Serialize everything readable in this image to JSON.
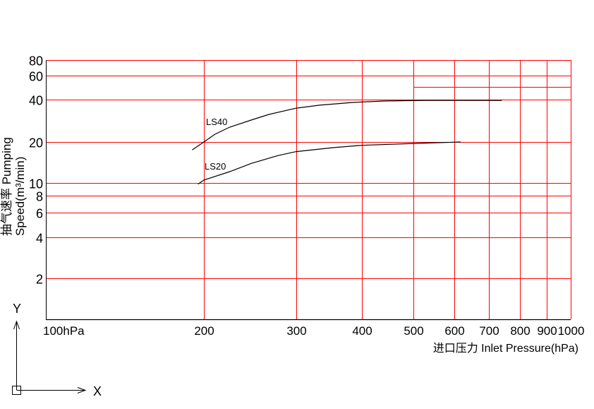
{
  "chart_data": {
    "type": "line",
    "title": "",
    "xlabel": "进口压力 Inlet Pressure(hPa)",
    "ylabel_line1": "抽气速率 Pumping",
    "ylabel_line2": "Speed(m³/min)",
    "x_scale": "log",
    "y_scale": "log",
    "xlim": [
      100,
      1000
    ],
    "ylim": [
      1,
      80
    ],
    "grid": true,
    "grid_color": "#ff0000",
    "axis_color": "#000000",
    "x_ticks": [
      {
        "value": 100,
        "label": "100hPa"
      },
      {
        "value": 200,
        "label": "200"
      },
      {
        "value": 300,
        "label": "300"
      },
      {
        "value": 400,
        "label": "400"
      },
      {
        "value": 500,
        "label": "500"
      },
      {
        "value": 600,
        "label": "600"
      },
      {
        "value": 700,
        "label": "700"
      },
      {
        "value": 800,
        "label": "800"
      },
      {
        "value": 900,
        "label": "900"
      },
      {
        "value": 1000,
        "label": "1000"
      }
    ],
    "y_ticks": [
      {
        "value": 80,
        "label": "80"
      },
      {
        "value": 60,
        "label": "60"
      },
      {
        "value": 40,
        "label": "40"
      },
      {
        "value": 20,
        "label": "20"
      },
      {
        "value": 10,
        "label": "10"
      },
      {
        "value": 8,
        "label": "8"
      },
      {
        "value": 6,
        "label": "6"
      },
      {
        "value": 4,
        "label": "4"
      },
      {
        "value": 2,
        "label": "2"
      }
    ],
    "series": [
      {
        "name": "LS40",
        "color": "#000000",
        "x": [
          190,
          200,
          210,
          224,
          246,
          266,
          300,
          332,
          385,
          440,
          525,
          740
        ],
        "y": [
          17.5,
          20,
          22.7,
          25.5,
          28.6,
          31.4,
          34.8,
          36.5,
          38.2,
          39.1,
          39.5,
          39.5
        ]
      },
      {
        "name": "LS20",
        "color": "#000000",
        "x": [
          195,
          200,
          224,
          246,
          277,
          300,
          354,
          400,
          500,
          617
        ],
        "y": [
          9.8,
          10.5,
          12.1,
          13.9,
          15.9,
          17.0,
          18.2,
          18.9,
          19.5,
          20
        ]
      }
    ]
  },
  "ucs_icon": {
    "x_label": "X",
    "y_label": "Y"
  }
}
